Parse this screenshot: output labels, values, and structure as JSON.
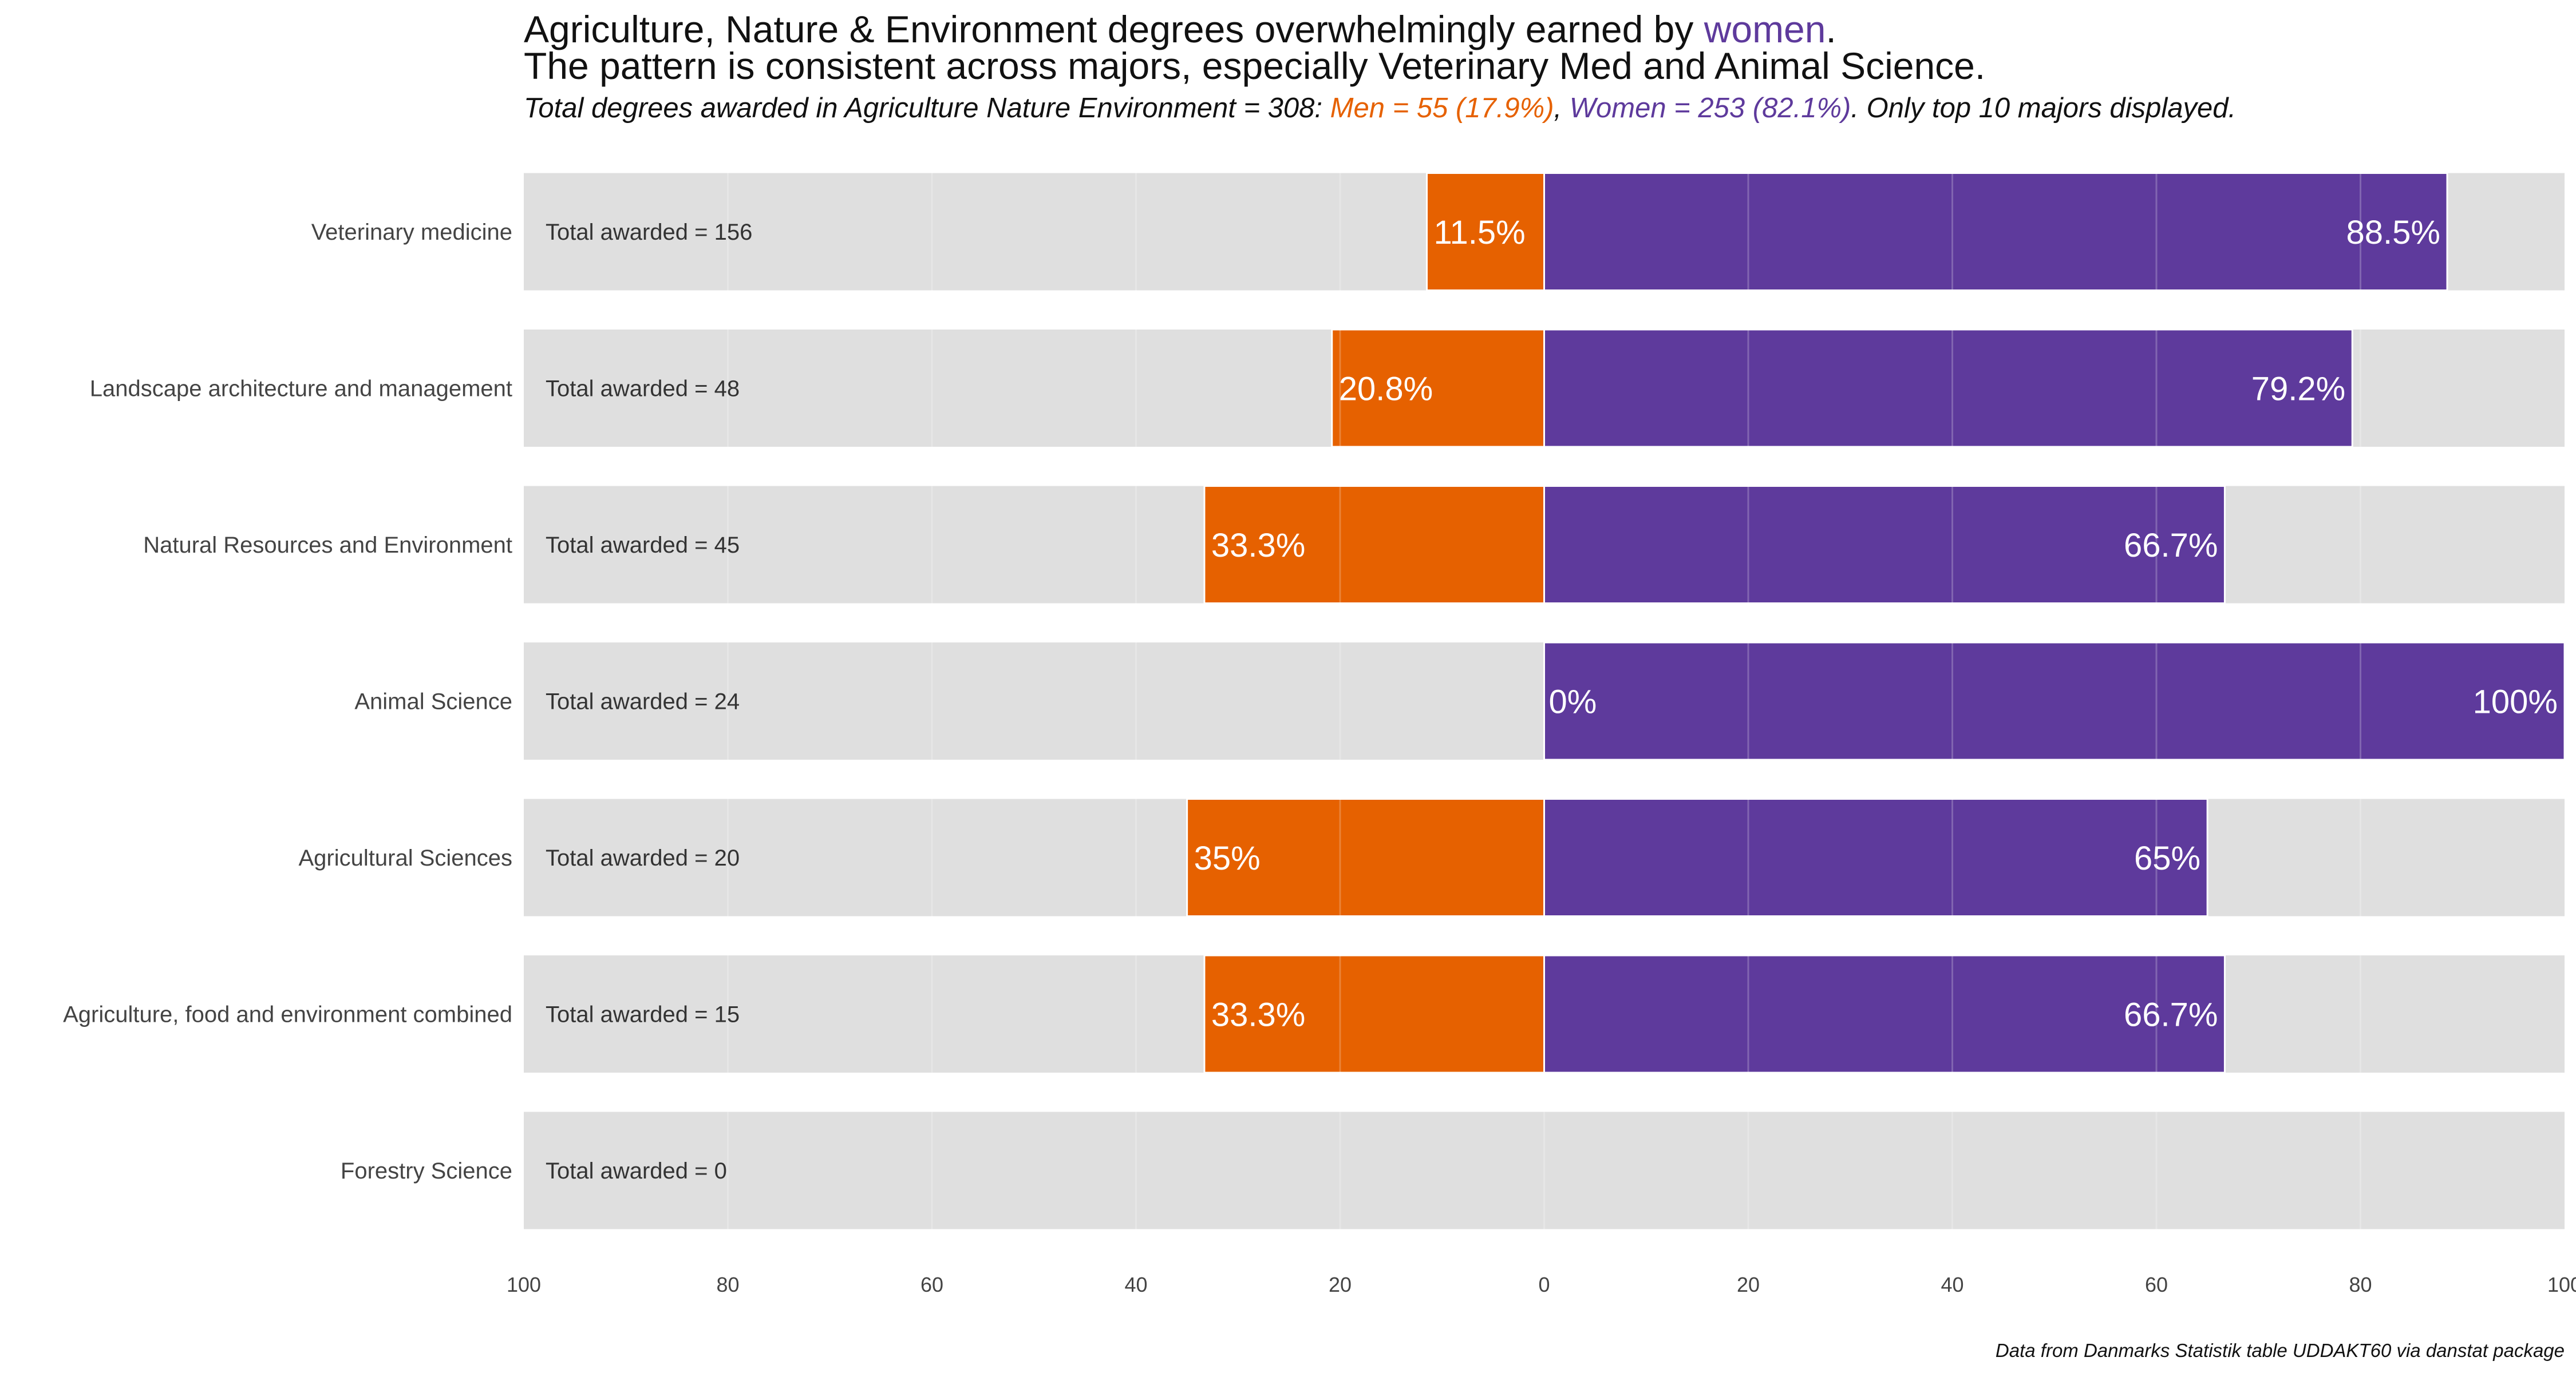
{
  "title": {
    "line1_prefix": "Agriculture, Nature & Environment degrees overwhelmingly earned by ",
    "line1_highlight": "women",
    "line1_suffix": ".",
    "line2": "The pattern is consistent across majors, especially Veterinary Med and Animal Science."
  },
  "subtitle": {
    "prefix": "Total degrees awarded in Agriculture Nature Environment = 308: ",
    "men": "Men = 55 (17.9%)",
    "sep": ", ",
    "women": "Women = 253 (82.1%)",
    "suffix": ". Only top 10 majors displayed."
  },
  "caption": "Data from Danmarks Statistik table UDDAKT60 via danstat package",
  "colors": {
    "men": "#e66100",
    "women": "#5e3a9c",
    "background_bar": "#dfdfdf",
    "grid": "#ffffff"
  },
  "chart_data": {
    "type": "bar",
    "orientation": "horizontal-diverging",
    "x_ticks": [
      "100",
      "80",
      "60",
      "40",
      "20",
      "0",
      "20",
      "40",
      "60",
      "80",
      "100"
    ],
    "xlim": [
      -100,
      100
    ],
    "categories": [
      "Veterinary medicine",
      "Landscape architecture and management",
      "Natural Resources and Environment",
      "Animal Science",
      "Agricultural Sciences",
      "Agriculture, food and environment combined",
      "Forestry Science"
    ],
    "totals": [
      "Total awarded = 156",
      "Total awarded = 48",
      "Total awarded = 45",
      "Total awarded = 24",
      "Total awarded = 20",
      "Total awarded = 15",
      "Total awarded = 0"
    ],
    "series": [
      {
        "name": "Men",
        "values": [
          11.5,
          20.8,
          33.3,
          0,
          35,
          33.3,
          null
        ],
        "labels": [
          "11.5%",
          "20.8%",
          "33.3%",
          "0%",
          "35%",
          "33.3%",
          ""
        ]
      },
      {
        "name": "Women",
        "values": [
          88.5,
          79.2,
          66.7,
          100,
          65,
          66.7,
          null
        ],
        "labels": [
          "88.5%",
          "79.2%",
          "66.7%",
          "100%",
          "65%",
          "66.7%",
          ""
        ]
      }
    ],
    "grid": true
  }
}
